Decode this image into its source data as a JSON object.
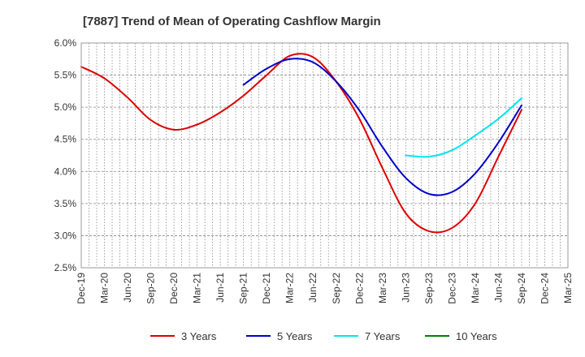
{
  "chart_data": {
    "type": "line",
    "title": "[7887]  Trend of Mean of Operating Cashflow Margin",
    "xlabel": "",
    "ylabel": "",
    "x_ticks": [
      "Dec-19",
      "Mar-20",
      "Jun-20",
      "Sep-20",
      "Dec-20",
      "Mar-21",
      "Jun-21",
      "Sep-21",
      "Dec-21",
      "Mar-22",
      "Jun-22",
      "Sep-22",
      "Dec-22",
      "Mar-23",
      "Jun-23",
      "Sep-23",
      "Dec-23",
      "Mar-24",
      "Jun-24",
      "Sep-24",
      "Dec-24",
      "Mar-25"
    ],
    "y_ticks": [
      "6.0%",
      "5.5%",
      "5.0%",
      "4.5%",
      "4.0%",
      "3.5%",
      "3.0%",
      "2.5%"
    ],
    "ylim": [
      2.5,
      6.0
    ],
    "y_unit": "%",
    "grid": true,
    "legend_position": "bottom",
    "series": [
      {
        "name": "3 Years",
        "color": "#dd0000",
        "x": [
          "Dec-19",
          "Mar-20",
          "Jun-20",
          "Sep-20",
          "Dec-20",
          "Mar-21",
          "Jun-21",
          "Sep-21",
          "Dec-21",
          "Mar-22",
          "Jun-22",
          "Sep-22",
          "Dec-22",
          "Mar-23",
          "Jun-23",
          "Sep-23",
          "Dec-23",
          "Mar-24",
          "Jun-24",
          "Sep-24"
        ],
        "values": [
          5.63,
          5.45,
          5.15,
          4.8,
          4.65,
          4.73,
          4.92,
          5.18,
          5.5,
          5.8,
          5.78,
          5.4,
          4.82,
          4.05,
          3.35,
          3.07,
          3.12,
          3.5,
          4.23,
          4.96
        ]
      },
      {
        "name": "5 Years",
        "color": "#0000cc",
        "x": [
          "Sep-21",
          "Dec-21",
          "Mar-22",
          "Jun-22",
          "Sep-22",
          "Dec-22",
          "Mar-23",
          "Jun-23",
          "Sep-23",
          "Dec-23",
          "Mar-24",
          "Jun-24",
          "Sep-24"
        ],
        "values": [
          5.35,
          5.6,
          5.75,
          5.7,
          5.4,
          4.95,
          4.38,
          3.9,
          3.65,
          3.68,
          3.97,
          4.45,
          5.03
        ]
      },
      {
        "name": "7 Years",
        "color": "#00e5ee",
        "x": [
          "Jun-23",
          "Sep-23",
          "Dec-23",
          "Mar-24",
          "Jun-24",
          "Sep-24"
        ],
        "values": [
          4.25,
          4.23,
          4.33,
          4.56,
          4.82,
          5.14
        ]
      },
      {
        "name": "10 Years",
        "color": "#008000",
        "x": [],
        "values": []
      }
    ]
  }
}
